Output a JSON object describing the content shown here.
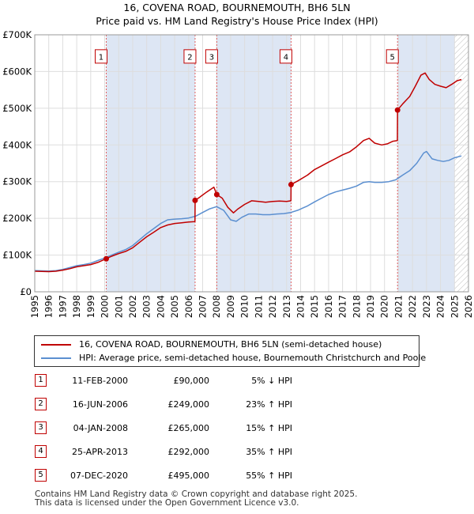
{
  "header": {
    "title": "16, COVENA ROAD, BOURNEMOUTH, BH6 5LN",
    "subtitle": "Price paid vs. HM Land Registry's House Price Index (HPI)"
  },
  "chart_data": {
    "type": "line",
    "title": "16, COVENA ROAD, BOURNEMOUTH, BH6 5LN",
    "subtitle": "Price paid vs. HM Land Registry's House Price Index (HPI)",
    "xlim": [
      1995,
      2026
    ],
    "ylim": [
      0,
      700000
    ],
    "x_ticks": [
      1995,
      1996,
      1997,
      1998,
      1999,
      2000,
      2001,
      2002,
      2003,
      2004,
      2005,
      2006,
      2007,
      2008,
      2009,
      2010,
      2011,
      2012,
      2013,
      2014,
      2015,
      2016,
      2017,
      2018,
      2019,
      2020,
      2021,
      2022,
      2023,
      2024,
      2025,
      2026
    ],
    "y_ticks": [
      0,
      100000,
      200000,
      300000,
      400000,
      500000,
      600000,
      700000
    ],
    "y_tick_labels": [
      "£0",
      "£100K",
      "£200K",
      "£300K",
      "£400K",
      "£500K",
      "£600K",
      "£700K"
    ],
    "colors": {
      "property": "#c00000",
      "hpi": "#5b8fd0",
      "shade": "#dde6f4",
      "grid": "#dddddd"
    },
    "shaded_ranges": [
      [
        2000.11,
        2006.46
      ],
      [
        2008.01,
        2013.32
      ],
      [
        2020.93,
        2025.0
      ]
    ],
    "hatched_from": 2025.0,
    "series": [
      {
        "name": "16, COVENA ROAD, BOURNEMOUTH, BH6 5LN (semi-detached house)",
        "color": "#c00000",
        "points": [
          [
            1995,
            56000
          ],
          [
            1995.5,
            55500
          ],
          [
            1996,
            55000
          ],
          [
            1996.5,
            56000
          ],
          [
            1997,
            59000
          ],
          [
            1997.5,
            63000
          ],
          [
            1998,
            68000
          ],
          [
            1998.5,
            71000
          ],
          [
            1999,
            74000
          ],
          [
            1999.5,
            80000
          ],
          [
            2000.11,
            90000
          ],
          [
            2000.5,
            97000
          ],
          [
            2001,
            104000
          ],
          [
            2001.5,
            110000
          ],
          [
            2002,
            120000
          ],
          [
            2002.5,
            135000
          ],
          [
            2003,
            150000
          ],
          [
            2003.5,
            162000
          ],
          [
            2004,
            175000
          ],
          [
            2004.5,
            182000
          ],
          [
            2005,
            186000
          ],
          [
            2005.5,
            188000
          ],
          [
            2006.0,
            190000
          ],
          [
            2006.45,
            191000
          ],
          [
            2006.46,
            249000
          ],
          [
            2006.8,
            258000
          ],
          [
            2007.3,
            272000
          ],
          [
            2007.8,
            285000
          ],
          [
            2008.01,
            265000
          ],
          [
            2008.4,
            255000
          ],
          [
            2008.8,
            230000
          ],
          [
            2009.2,
            215000
          ],
          [
            2009.5,
            225000
          ],
          [
            2010,
            238000
          ],
          [
            2010.5,
            248000
          ],
          [
            2011,
            246000
          ],
          [
            2011.5,
            244000
          ],
          [
            2012,
            246000
          ],
          [
            2012.5,
            247000
          ],
          [
            2013.0,
            246000
          ],
          [
            2013.31,
            248000
          ],
          [
            2013.32,
            292000
          ],
          [
            2013.8,
            302000
          ],
          [
            2014.5,
            318000
          ],
          [
            2015,
            333000
          ],
          [
            2015.5,
            343000
          ],
          [
            2016,
            353000
          ],
          [
            2016.5,
            363000
          ],
          [
            2017,
            373000
          ],
          [
            2017.5,
            381000
          ],
          [
            2018,
            395000
          ],
          [
            2018.5,
            412000
          ],
          [
            2018.9,
            418000
          ],
          [
            2019.3,
            405000
          ],
          [
            2019.8,
            400000
          ],
          [
            2020.2,
            403000
          ],
          [
            2020.6,
            410000
          ],
          [
            2020.92,
            412000
          ],
          [
            2020.93,
            495000
          ],
          [
            2021.3,
            512000
          ],
          [
            2021.8,
            532000
          ],
          [
            2022.2,
            560000
          ],
          [
            2022.6,
            590000
          ],
          [
            2022.9,
            596000
          ],
          [
            2023.2,
            578000
          ],
          [
            2023.6,
            565000
          ],
          [
            2024.0,
            560000
          ],
          [
            2024.4,
            556000
          ],
          [
            2024.8,
            565000
          ],
          [
            2025.2,
            575000
          ],
          [
            2025.5,
            578000
          ]
        ]
      },
      {
        "name": "HPI: Average price, semi-detached house, Bournemouth Christchurch and Poole",
        "color": "#5b8fd0",
        "points": [
          [
            1995,
            58000
          ],
          [
            1995.5,
            57000
          ],
          [
            1996,
            56500
          ],
          [
            1996.5,
            57500
          ],
          [
            1997,
            61000
          ],
          [
            1997.5,
            66000
          ],
          [
            1998,
            71000
          ],
          [
            1998.5,
            74000
          ],
          [
            1999,
            78000
          ],
          [
            1999.5,
            85000
          ],
          [
            2000,
            92000
          ],
          [
            2000.5,
            100000
          ],
          [
            2001,
            108000
          ],
          [
            2001.5,
            115000
          ],
          [
            2002,
            126000
          ],
          [
            2002.5,
            142000
          ],
          [
            2003,
            158000
          ],
          [
            2003.5,
            172000
          ],
          [
            2004,
            186000
          ],
          [
            2004.5,
            196000
          ],
          [
            2005,
            198000
          ],
          [
            2005.5,
            199000
          ],
          [
            2006,
            201000
          ],
          [
            2006.5,
            206000
          ],
          [
            2007,
            216000
          ],
          [
            2007.5,
            226000
          ],
          [
            2008,
            232000
          ],
          [
            2008.5,
            222000
          ],
          [
            2009,
            196000
          ],
          [
            2009.4,
            192000
          ],
          [
            2009.8,
            203000
          ],
          [
            2010.3,
            212000
          ],
          [
            2010.8,
            212000
          ],
          [
            2011.3,
            210000
          ],
          [
            2011.8,
            210000
          ],
          [
            2012.3,
            212000
          ],
          [
            2012.8,
            213000
          ],
          [
            2013.3,
            216000
          ],
          [
            2013.8,
            222000
          ],
          [
            2014.5,
            234000
          ],
          [
            2015,
            245000
          ],
          [
            2015.5,
            255000
          ],
          [
            2016,
            265000
          ],
          [
            2016.5,
            272000
          ],
          [
            2017,
            277000
          ],
          [
            2017.5,
            282000
          ],
          [
            2018,
            288000
          ],
          [
            2018.5,
            298000
          ],
          [
            2018.9,
            300000
          ],
          [
            2019.3,
            298000
          ],
          [
            2019.8,
            298000
          ],
          [
            2020.3,
            300000
          ],
          [
            2020.8,
            305000
          ],
          [
            2021.3,
            318000
          ],
          [
            2021.8,
            330000
          ],
          [
            2022.3,
            350000
          ],
          [
            2022.8,
            378000
          ],
          [
            2023.0,
            382000
          ],
          [
            2023.4,
            362000
          ],
          [
            2023.8,
            358000
          ],
          [
            2024.2,
            355000
          ],
          [
            2024.6,
            358000
          ],
          [
            2025.0,
            365000
          ],
          [
            2025.5,
            370000
          ]
        ]
      }
    ],
    "markers": [
      {
        "label": "1",
        "x": 2000.11,
        "y": 90000
      },
      {
        "label": "2",
        "x": 2006.46,
        "y": 249000
      },
      {
        "label": "3",
        "x": 2008.01,
        "y": 265000
      },
      {
        "label": "4",
        "x": 2013.32,
        "y": 292000
      },
      {
        "label": "5",
        "x": 2020.93,
        "y": 495000
      }
    ],
    "marker_label_y": 640000
  },
  "legend": {
    "items": [
      {
        "label": "16, COVENA ROAD, BOURNEMOUTH, BH6 5LN (semi-detached house)",
        "color": "#c00000"
      },
      {
        "label": "HPI: Average price, semi-detached house, Bournemouth Christchurch and Poole",
        "color": "#5b8fd0"
      }
    ]
  },
  "transactions": [
    {
      "num": "1",
      "date": "11-FEB-2000",
      "price": "£90,000",
      "hpi": "5% ↓ HPI"
    },
    {
      "num": "2",
      "date": "16-JUN-2006",
      "price": "£249,000",
      "hpi": "23% ↑ HPI"
    },
    {
      "num": "3",
      "date": "04-JAN-2008",
      "price": "£265,000",
      "hpi": "15% ↑ HPI"
    },
    {
      "num": "4",
      "date": "25-APR-2013",
      "price": "£292,000",
      "hpi": "35% ↑ HPI"
    },
    {
      "num": "5",
      "date": "07-DEC-2020",
      "price": "£495,000",
      "hpi": "55% ↑ HPI"
    }
  ],
  "footer": {
    "line1": "Contains HM Land Registry data © Crown copyright and database right 2025.",
    "line2": "This data is licensed under the Open Government Licence v3.0."
  }
}
